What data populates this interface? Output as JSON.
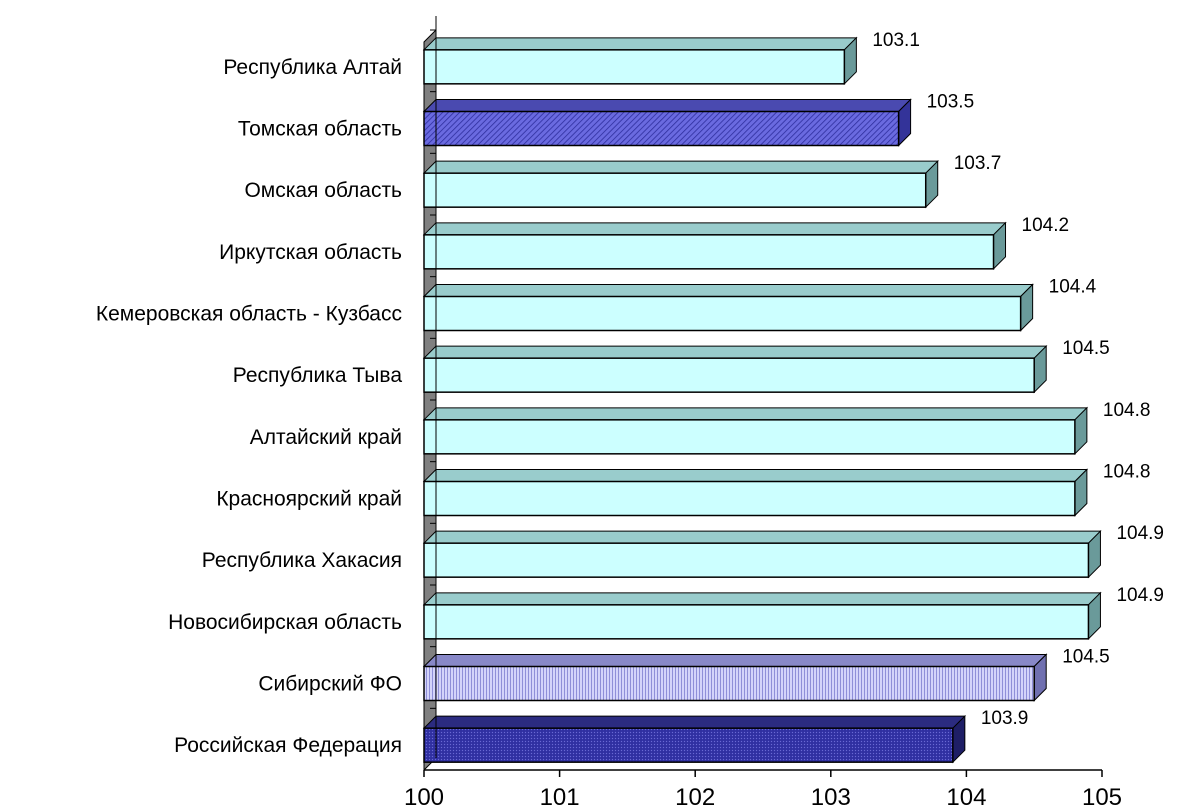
{
  "chart_data": {
    "type": "bar",
    "orientation": "horizontal",
    "title": "",
    "xlabel": "",
    "ylabel": "",
    "xlim": [
      100,
      105
    ],
    "x_ticks": [
      "100",
      "101",
      "102",
      "103",
      "104",
      "105"
    ],
    "grid": false,
    "legend": false,
    "categories": [
      "Республика Алтай",
      "Томская область",
      "Омская область",
      "Иркутская область",
      "Кемеровская область - Кузбасс",
      "Республика Тыва",
      "Алтайский край",
      "Красноярский край",
      "Республика Хакасия",
      "Новосибирская область",
      "Сибирский ФО",
      "Российская Федерация"
    ],
    "values": [
      103.1,
      103.5,
      103.7,
      104.2,
      104.4,
      104.5,
      104.8,
      104.8,
      104.9,
      104.9,
      104.5,
      103.9
    ],
    "value_labels": [
      "103.1",
      "103.5",
      "103.7",
      "104.2",
      "104.4",
      "104.5",
      "104.8",
      "104.8",
      "104.9",
      "104.9",
      "104.5",
      "103.9"
    ],
    "bar_styles": [
      "default",
      "tomsk",
      "default",
      "default",
      "default",
      "default",
      "default",
      "default",
      "default",
      "default",
      "sfo",
      "rf"
    ],
    "colors": {
      "default_face": "#ccffff",
      "default_top": "#99cccc",
      "default_side": "#6a9a9a",
      "tomsk_face": "#6666dd",
      "tomsk_top": "#4a4ab0",
      "tomsk_side": "#333399",
      "sfo_face": "#c4c4f2",
      "sfo_top": "#8888c8",
      "sfo_side": "#7070b0",
      "rf_face": "#3b3bb0",
      "rf_top": "#2b2b80",
      "rf_side": "#1e1e66",
      "wall": "#808080",
      "outline": "#000000"
    }
  }
}
